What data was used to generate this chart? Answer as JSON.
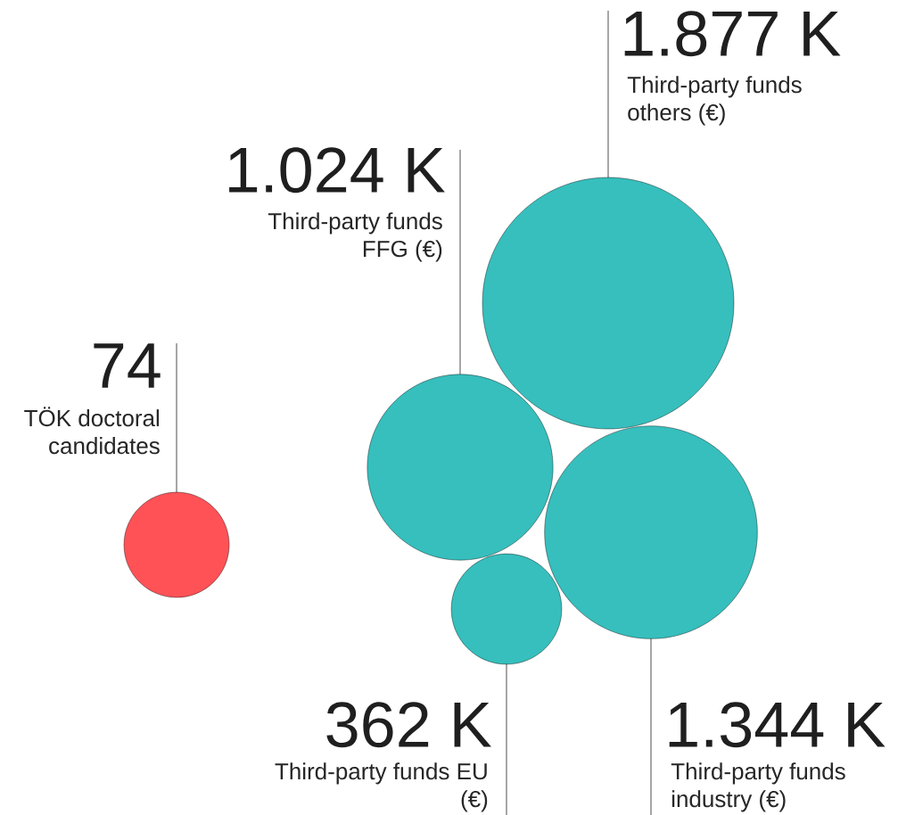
{
  "chart_data": {
    "type": "other",
    "categories": [
      "TÖK doctoral candidates",
      "Third-party funds FFG (€)",
      "Third-party funds others (€)",
      "Third-party funds EU (€)",
      "Third-party funds industry (€)"
    ],
    "values": [
      74,
      1024,
      1877,
      362,
      1344
    ],
    "value_labels": [
      "74",
      "1.024 K",
      "1.877 K",
      "362 K",
      "1.344 K"
    ],
    "colors": [
      "#ff5257",
      "#36bfbd",
      "#36bfbd",
      "#36bfbd",
      "#36bfbd"
    ]
  }
}
